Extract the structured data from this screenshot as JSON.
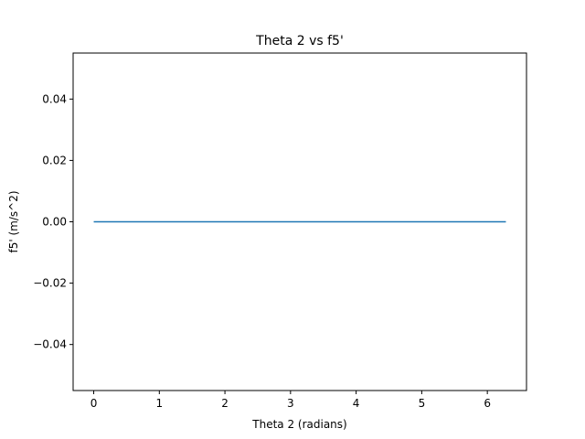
{
  "chart_data": {
    "type": "line",
    "title": "Theta 2 vs f5'",
    "xlabel": "Theta 2 (radians)",
    "ylabel": "f5' (m/s^2)",
    "xlim": [
      -0.314,
      6.597
    ],
    "ylim": [
      -0.055,
      0.055
    ],
    "xticks": [
      0,
      1,
      2,
      3,
      4,
      5,
      6
    ],
    "xtick_labels": [
      "0",
      "1",
      "2",
      "3",
      "4",
      "5",
      "6"
    ],
    "yticks": [
      -0.04,
      -0.02,
      0.0,
      0.02,
      0.04
    ],
    "ytick_labels": [
      "−0.04",
      "−0.02",
      "0.00",
      "0.02",
      "0.04"
    ],
    "grid": false,
    "legend": "none",
    "series": [
      {
        "color": "#1f77b4",
        "x": [
          0,
          6.283
        ],
        "y": [
          0,
          0
        ]
      }
    ]
  }
}
